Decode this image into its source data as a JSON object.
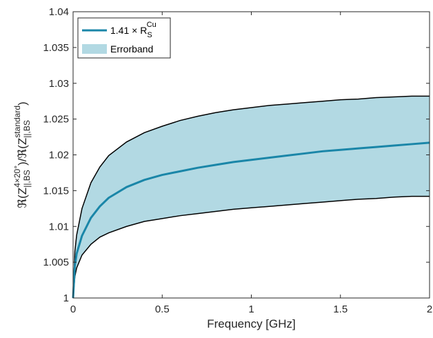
{
  "chart_data": {
    "type": "area",
    "xlabel": "Frequency [GHz]",
    "ylabel": {
      "main": "ℜ(Z",
      "sub1": "||,BS",
      "sup1": "4×20°",
      "mid": ")/ℜ(Z",
      "sub2": "||,BS",
      "sup2": "standard",
      "end": ")"
    },
    "xlim": [
      0,
      2
    ],
    "ylim": [
      1,
      1.04
    ],
    "xticks": [
      0,
      0.5,
      1,
      1.5,
      2
    ],
    "xtick_labels": [
      "0",
      "0.5",
      "1",
      "1.5",
      "2"
    ],
    "yticks": [
      1,
      1.005,
      1.01,
      1.015,
      1.02,
      1.025,
      1.03,
      1.035,
      1.04
    ],
    "ytick_labels": [
      "1",
      "1.005",
      "1.01",
      "1.015",
      "1.02",
      "1.025",
      "1.03",
      "1.035",
      "1.04"
    ],
    "grid": false,
    "legend_placement": "top-left",
    "legend": [
      {
        "label": "1.41 × R",
        "sup": "Cu",
        "sub": "S",
        "kind": "line"
      },
      {
        "label": "Errorband",
        "kind": "patch"
      }
    ],
    "colors": {
      "line": "#1a86a8",
      "band_fill": "#b2d9e3",
      "band_edge": "#000000"
    },
    "x": [
      0,
      0.01,
      0.02,
      0.05,
      0.1,
      0.15,
      0.2,
      0.3,
      0.4,
      0.5,
      0.6,
      0.7,
      0.8,
      0.9,
      1.0,
      1.1,
      1.2,
      1.3,
      1.4,
      1.5,
      1.6,
      1.7,
      1.8,
      1.9,
      2.0
    ],
    "series": [
      {
        "name": "1.41 × R_S^Cu",
        "role": "line",
        "values": [
          1.0,
          1.0045,
          1.0062,
          1.0087,
          1.0112,
          1.0128,
          1.014,
          1.0155,
          1.0165,
          1.0172,
          1.0177,
          1.0182,
          1.0186,
          1.019,
          1.0193,
          1.0196,
          1.0199,
          1.0202,
          1.0205,
          1.0207,
          1.0209,
          1.0211,
          1.0213,
          1.0215,
          1.0217
        ]
      },
      {
        "name": "Errorband",
        "role": "band_upper",
        "values": [
          1.0,
          1.0065,
          1.0088,
          1.0125,
          1.0161,
          1.0183,
          1.0199,
          1.0218,
          1.0231,
          1.024,
          1.0248,
          1.0254,
          1.0259,
          1.0263,
          1.0266,
          1.0269,
          1.0271,
          1.0273,
          1.0275,
          1.0277,
          1.0278,
          1.028,
          1.0281,
          1.0282,
          1.0282
        ]
      },
      {
        "name": "Errorband",
        "role": "band_lower",
        "values": [
          1.0,
          1.003,
          1.0042,
          1.006,
          1.0075,
          1.0085,
          1.0091,
          1.01,
          1.0107,
          1.0111,
          1.0115,
          1.0118,
          1.0121,
          1.0124,
          1.0126,
          1.0128,
          1.013,
          1.0132,
          1.0134,
          1.0136,
          1.0138,
          1.0139,
          1.0141,
          1.0142,
          1.0142
        ]
      }
    ]
  }
}
